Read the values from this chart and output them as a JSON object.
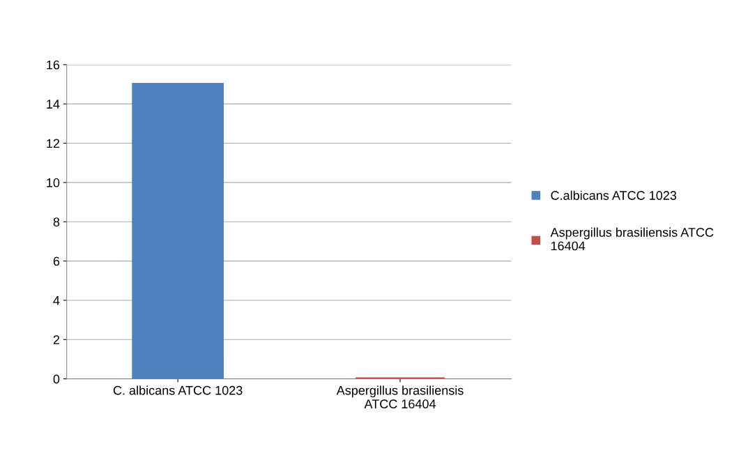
{
  "chart_data": {
    "type": "bar",
    "categories": [
      "C. albicans ATCC 1023",
      "Aspergillus brasiliensis\nATCC 16404"
    ],
    "series": [
      {
        "name": "C.albicans ATCC 1023",
        "color": "#4f81bd",
        "values": [
          15,
          null
        ]
      },
      {
        "name": "Aspergillus brasiliensis ATCC\n16404",
        "color": "#c0504d",
        "values": [
          null,
          0
        ]
      }
    ],
    "ylim": [
      0,
      16
    ],
    "yticks": [
      0,
      2,
      4,
      6,
      8,
      10,
      12,
      14,
      16
    ],
    "grid": "y",
    "legend": "right"
  }
}
